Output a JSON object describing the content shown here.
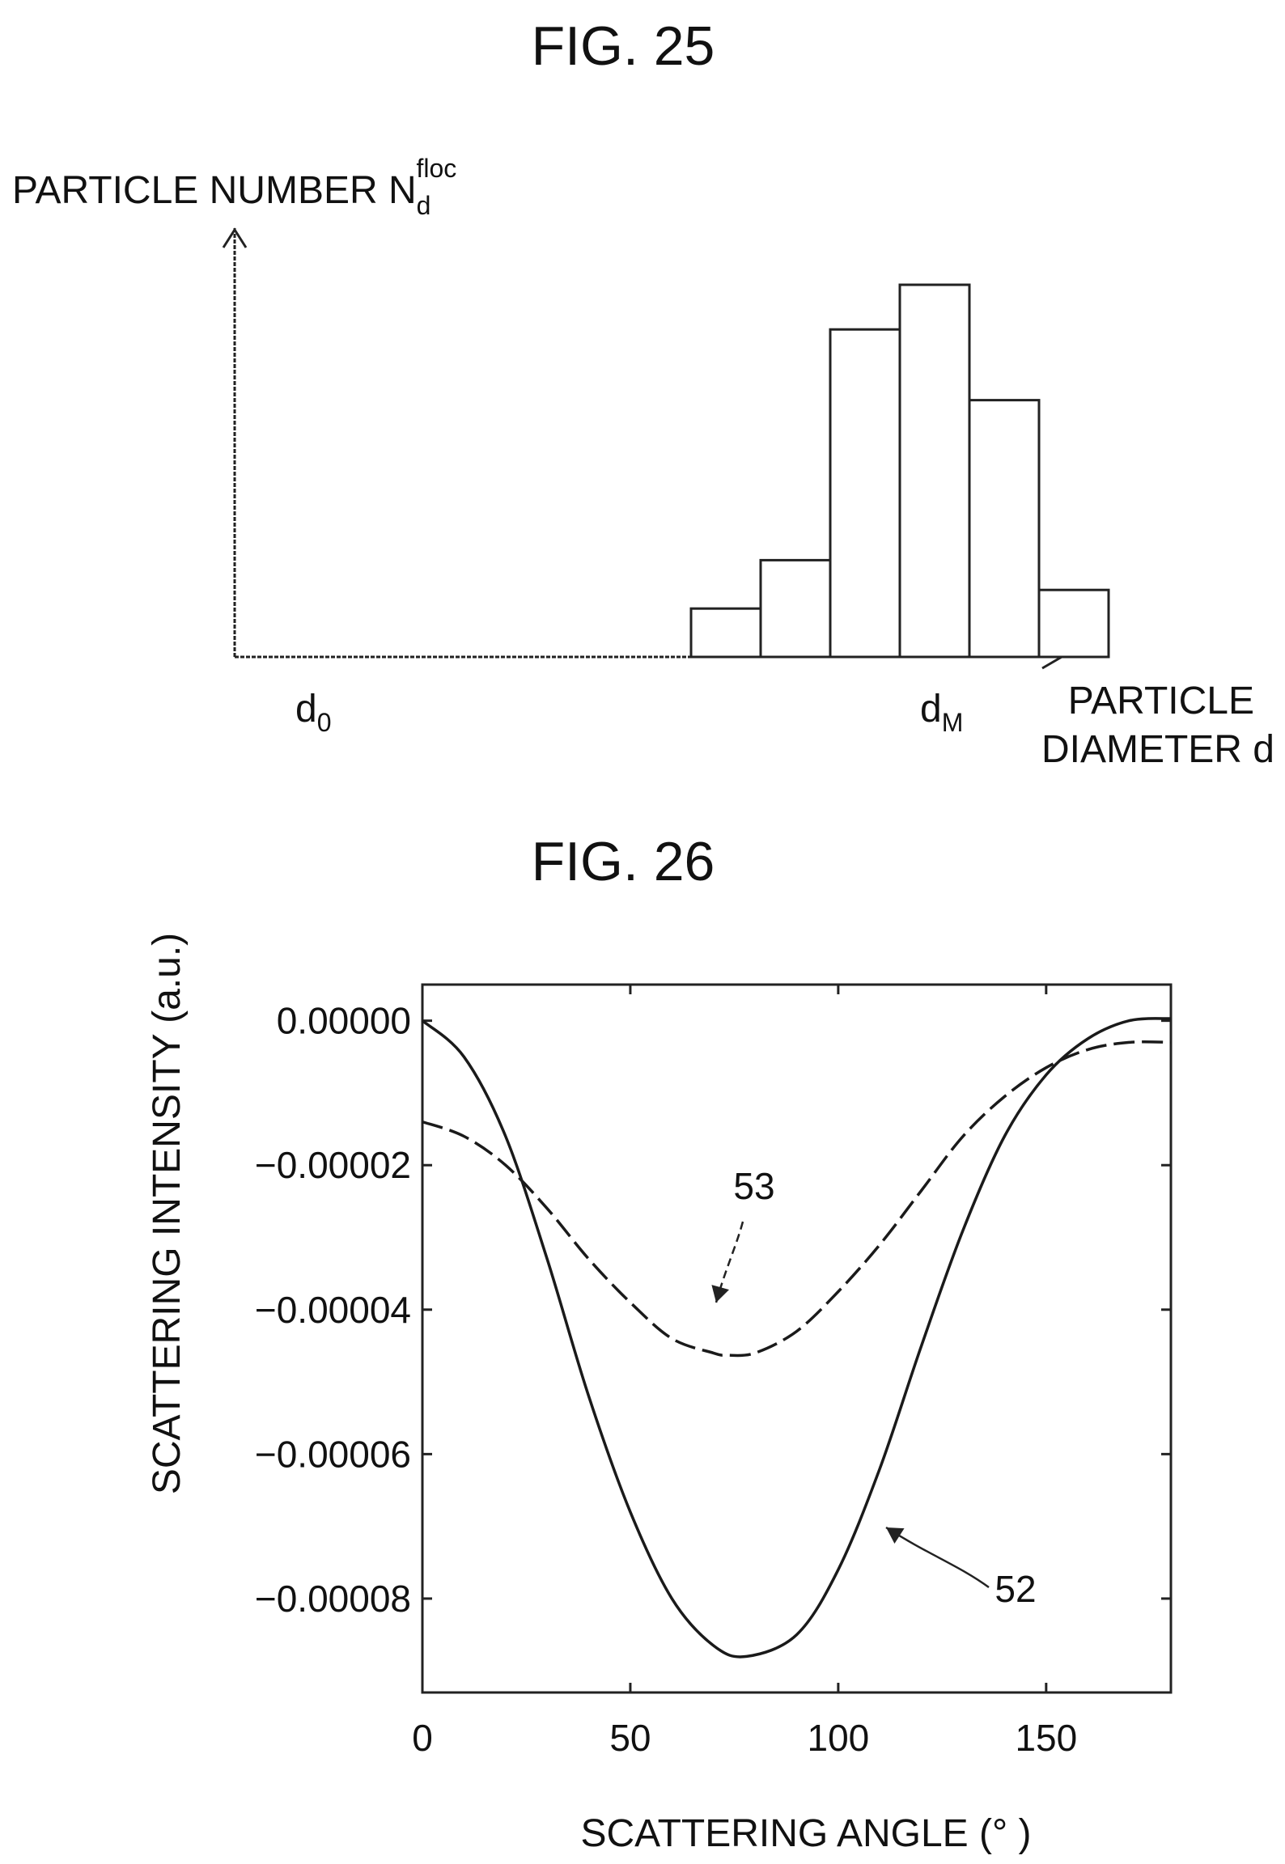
{
  "figures": [
    {
      "title": "FIG. 25",
      "ylabel": {
        "text": "PARTICLE NUMBER N",
        "sub": "d",
        "sup": "floc"
      },
      "xlabel": {
        "line1": "PARTICLE",
        "line2": "DIAMETER d"
      },
      "x_start_label": {
        "base": "d",
        "sub": "0"
      },
      "x_end_label": {
        "base": "d",
        "sub": "M"
      }
    },
    {
      "title": "FIG. 26",
      "xlabel": "SCATTERING ANGLE (°  )",
      "ylabel": "SCATTERING INTENSITY (a.u.)",
      "callouts": [
        "53",
        "52"
      ]
    }
  ],
  "chart_data": [
    {
      "type": "bar",
      "title": "FIG. 25",
      "xlabel": "PARTICLE DIAMETER d",
      "ylabel": "PARTICLE NUMBER N_d^floc",
      "x_range_labels": [
        "d0",
        "dM"
      ],
      "bin_index_range": [
        0,
        11
      ],
      "bins": [
        6,
        7,
        8,
        9,
        10,
        11
      ],
      "values": [
        0.13,
        0.26,
        0.88,
        1.0,
        0.69,
        0.18
      ],
      "value_scale": "relative",
      "grid": false
    },
    {
      "type": "line",
      "title": "FIG. 26",
      "xlabel": "SCATTERING ANGLE (°  )",
      "ylabel": "SCATTERING INTENSITY (a.u.)",
      "xlim": [
        0,
        180
      ],
      "ylim": [
        -9.3e-05,
        5e-06
      ],
      "xticks": [
        {
          "value": 0,
          "label": "0"
        },
        {
          "value": 50,
          "label": "50"
        },
        {
          "value": 100,
          "label": "100"
        },
        {
          "value": 150,
          "label": "150"
        }
      ],
      "yticks": [
        {
          "value": 0,
          "label": "0.00000"
        },
        {
          "value": -2e-05,
          "label": "−0.00002"
        },
        {
          "value": -4e-05,
          "label": "−0.00004"
        },
        {
          "value": -6e-05,
          "label": "−0.00006"
        },
        {
          "value": -8e-05,
          "label": "−0.00008"
        }
      ],
      "grid": false,
      "series": [
        {
          "callout": "52",
          "style": "solid",
          "x": [
            0,
            10,
            20,
            30,
            40,
            50,
            60,
            70,
            78,
            90,
            100,
            110,
            120,
            130,
            140,
            150,
            160,
            170,
            180
          ],
          "y": [
            0.0,
            -5e-06,
            -1.6e-05,
            -3.3e-05,
            -5.2e-05,
            -6.8e-05,
            -8e-05,
            -8.65e-05,
            -8.8e-05,
            -8.5e-05,
            -7.6e-05,
            -6.2e-05,
            -4.5e-05,
            -2.9e-05,
            -1.6e-05,
            -7.5e-06,
            -2.5e-06,
            0.0,
            3e-07
          ]
        },
        {
          "callout": "53",
          "style": "dashed",
          "x": [
            0,
            10,
            20,
            30,
            40,
            50,
            60,
            70,
            73,
            80,
            90,
            100,
            110,
            120,
            130,
            140,
            150,
            160,
            170,
            180
          ],
          "y": [
            -1.4e-05,
            -1.6e-05,
            -2e-05,
            -2.6e-05,
            -3.3e-05,
            -3.9e-05,
            -4.4e-05,
            -4.6e-05,
            -4.63e-05,
            -4.6e-05,
            -4.3e-05,
            -3.75e-05,
            -3.1e-05,
            -2.35e-05,
            -1.6e-05,
            -1.05e-05,
            -6.5e-06,
            -4e-06,
            -3e-06,
            -3e-06
          ]
        }
      ]
    }
  ]
}
